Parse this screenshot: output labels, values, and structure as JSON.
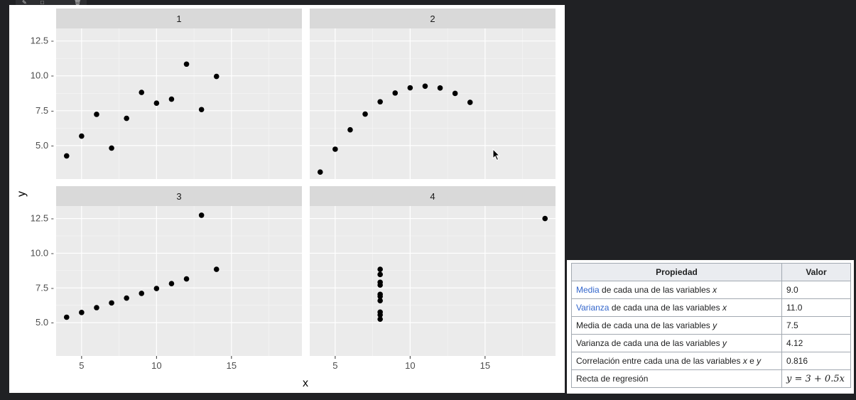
{
  "chart_data": {
    "type": "scatter",
    "layout": "facet_wrap 2x2",
    "xlabel": "x",
    "ylabel": "y",
    "x_ticks": [
      5,
      10,
      15
    ],
    "y_ticks": [
      5.0,
      7.5,
      10.0,
      12.5
    ],
    "x_tick_labels": [
      "5",
      "10",
      "15"
    ],
    "y_tick_labels": [
      "5.0 -",
      "7.5 -",
      "10.0 -",
      "12.5 -"
    ],
    "xlim": [
      3.3,
      19.7
    ],
    "ylim": [
      2.6,
      13.4
    ],
    "grid": true,
    "point_color": "#000000",
    "panel_bg": "#ebebeb",
    "strip_bg": "#d9d9d9",
    "panels": [
      {
        "label": "1",
        "x": [
          10,
          8,
          13,
          9,
          11,
          14,
          6,
          4,
          12,
          7,
          5
        ],
        "y": [
          8.04,
          6.95,
          7.58,
          8.81,
          8.33,
          9.96,
          7.24,
          4.26,
          10.84,
          4.82,
          5.68
        ]
      },
      {
        "label": "2",
        "x": [
          10,
          8,
          13,
          9,
          11,
          14,
          6,
          4,
          12,
          7,
          5
        ],
        "y": [
          9.14,
          8.14,
          8.74,
          8.77,
          9.26,
          8.1,
          6.13,
          3.1,
          9.13,
          7.26,
          4.74
        ]
      },
      {
        "label": "3",
        "x": [
          10,
          8,
          13,
          9,
          11,
          14,
          6,
          4,
          12,
          7,
          5
        ],
        "y": [
          7.46,
          6.77,
          12.74,
          7.11,
          7.81,
          8.84,
          6.08,
          5.39,
          8.15,
          6.42,
          5.73
        ]
      },
      {
        "label": "4",
        "x": [
          8,
          8,
          8,
          8,
          8,
          8,
          8,
          19,
          8,
          8,
          8
        ],
        "y": [
          6.58,
          5.76,
          7.71,
          8.84,
          8.47,
          7.04,
          5.25,
          12.5,
          5.56,
          7.91,
          6.89
        ]
      }
    ]
  },
  "table": {
    "headers": [
      "Propiedad",
      "Valor"
    ],
    "rows": [
      {
        "link": "Media",
        "rest": " de cada una de las variables ",
        "var": "x",
        "value": "9.0"
      },
      {
        "link": "Varianza",
        "rest": " de cada una de las variables ",
        "var": "x",
        "value": "11.0"
      },
      {
        "link": "",
        "rest": "Media de cada una de las variables ",
        "var": "y",
        "value": "7.5"
      },
      {
        "link": "",
        "rest": "Varianza de cada una de las variables ",
        "var": "y",
        "value": "4.12"
      },
      {
        "link": "",
        "rest": "Correlación entre cada una de las variables ",
        "var": "x",
        "tail": " e ",
        "var2": "y",
        "value": "0.816"
      },
      {
        "link": "",
        "rest": "Recta de regresión",
        "var": "",
        "value": "y = 3 + 0.5x"
      }
    ]
  },
  "colors": {
    "link": "#3366cc",
    "table_header_bg": "#eaecf0",
    "border": "#a2a9b1",
    "page_bg": "#202124"
  },
  "icons": [
    "pencil-icon",
    "square-icon",
    "trash-icon",
    "cursor-icon"
  ]
}
